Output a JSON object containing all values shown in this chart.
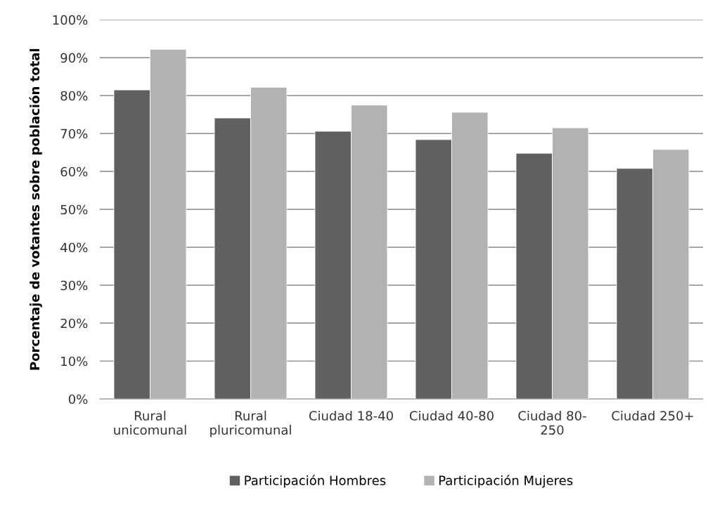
{
  "chart_data": {
    "type": "bar",
    "ylabel": "Porcentaje de votantes sobre población total",
    "categories": [
      "Rural\nunicomunal",
      "Rural\npluricomunal",
      "Ciudad 18-40",
      "Ciudad 40-80",
      "Ciudad 80-\n250",
      "Ciudad 250+"
    ],
    "series": [
      {
        "name": "Participación Hombres",
        "color": "#606060",
        "values": [
          81.5,
          74.1,
          70.6,
          68.4,
          64.8,
          60.8
        ]
      },
      {
        "name": "Participación Mujeres",
        "color": "#b2b2b2",
        "values": [
          92.2,
          82.2,
          77.5,
          75.6,
          71.5,
          65.8
        ]
      }
    ],
    "ylim": [
      0,
      100
    ],
    "yticks": [
      {
        "value": 0,
        "label": "0%"
      },
      {
        "value": 10,
        "label": "10%"
      },
      {
        "value": 20,
        "label": "20%"
      },
      {
        "value": 30,
        "label": "30%"
      },
      {
        "value": 40,
        "label": "40%"
      },
      {
        "value": 50,
        "label": "50%"
      },
      {
        "value": 60,
        "label": "60%"
      },
      {
        "value": 70,
        "label": "70%"
      },
      {
        "value": 80,
        "label": "80%"
      },
      {
        "value": 90,
        "label": "90%"
      },
      {
        "value": 100,
        "label": "100%"
      }
    ],
    "grid": "y",
    "legend": "bottom"
  }
}
